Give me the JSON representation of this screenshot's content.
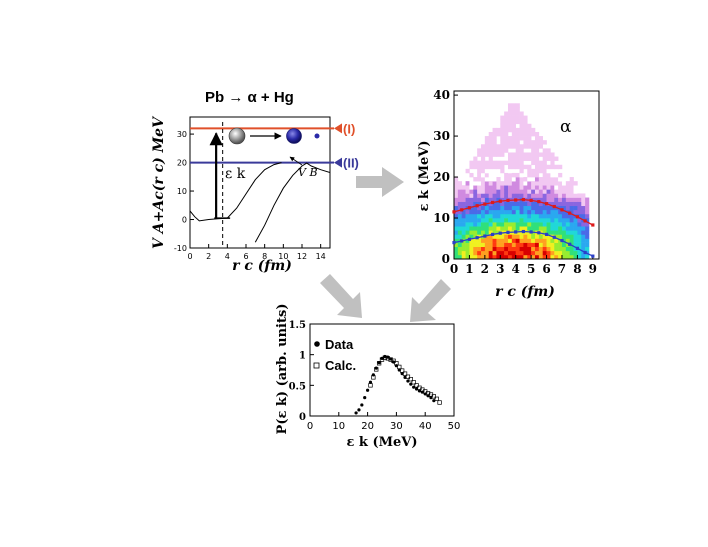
{
  "colors": {
    "level_I": "#e0502a",
    "level_II": "#3a3a9a",
    "arrow_gray": "#c0c0c0",
    "curve_red": "#dd1a1a",
    "curve_blue": "#2a3fc8"
  },
  "potential_panel": {
    "title": "Pb → α + Hg",
    "ylabel": "V A+Ac(r c) MeV",
    "xlabel": "r c (fm)",
    "x_ticks": [
      "0",
      "2",
      "4",
      "6",
      "8",
      "10",
      "12",
      "14"
    ],
    "y_ticks": [
      "-10",
      "0",
      "10",
      "20",
      "30"
    ],
    "level_I_label": "(I)",
    "level_II_label": "(II)",
    "eps_label": "ε k",
    "vb_label": "V B",
    "level_I_value": 32,
    "level_II_value": 20,
    "dashed_x": 3.5,
    "barrier_curve": [
      [
        7.0,
        -8
      ],
      [
        8,
        -2
      ],
      [
        9,
        5
      ],
      [
        10,
        11
      ],
      [
        11,
        15.5
      ],
      [
        12,
        18.8
      ],
      [
        12.5,
        19.8
      ],
      [
        13,
        18.8
      ],
      [
        14,
        17.5
      ],
      [
        15,
        16.5
      ]
    ],
    "solid_curve": [
      [
        0,
        3
      ],
      [
        0.5,
        1
      ],
      [
        1,
        -0.5
      ],
      [
        2,
        0
      ],
      [
        3,
        0.3
      ],
      [
        4.0,
        0.5
      ],
      [
        5,
        4
      ],
      [
        6,
        9
      ],
      [
        7,
        14
      ],
      [
        8,
        17.5
      ],
      [
        9,
        19.3
      ],
      [
        9.8,
        20
      ]
    ]
  },
  "heatmap_panel": {
    "ylabel": "ε k (MeV)",
    "xlabel": "r c (fm)",
    "particle": "α",
    "x_ticks": [
      "0",
      "1",
      "2",
      "3",
      "4",
      "5",
      "6",
      "7",
      "8",
      "9"
    ],
    "y_ticks": [
      "0",
      "10",
      "20",
      "30",
      "40"
    ],
    "xlim": [
      0,
      9.4
    ],
    "ylim": [
      0,
      41
    ],
    "red_curve": [
      [
        0,
        11.5
      ],
      [
        0.5,
        12
      ],
      [
        1,
        12.5
      ],
      [
        1.5,
        13
      ],
      [
        2,
        13.4
      ],
      [
        2.5,
        13.8
      ],
      [
        3,
        14.1
      ],
      [
        3.5,
        14.3
      ],
      [
        4,
        14.4
      ],
      [
        4.5,
        14.5
      ],
      [
        5,
        14.3
      ],
      [
        5.5,
        14
      ],
      [
        6,
        13.5
      ],
      [
        6.5,
        12.8
      ],
      [
        7,
        12
      ],
      [
        7.5,
        11.2
      ],
      [
        8,
        10.3
      ],
      [
        8.5,
        9.3
      ],
      [
        9,
        8.3
      ]
    ],
    "blue_curve": [
      [
        0,
        4
      ],
      [
        0.5,
        4.4
      ],
      [
        1,
        4.8
      ],
      [
        1.5,
        5.2
      ],
      [
        2,
        5.6
      ],
      [
        2.5,
        6
      ],
      [
        3,
        6.3
      ],
      [
        3.5,
        6.5
      ],
      [
        4,
        6.6
      ],
      [
        4.5,
        6.7
      ],
      [
        5,
        6.6
      ],
      [
        5.5,
        6.4
      ],
      [
        6,
        6
      ],
      [
        6.5,
        5.3
      ],
      [
        7,
        4.5
      ],
      [
        7.5,
        3.6
      ],
      [
        8,
        2.6
      ],
      [
        8.5,
        1.6
      ],
      [
        9,
        0.7
      ]
    ]
  },
  "spectrum_panel": {
    "ylabel": "P(ε k) (arb. units)",
    "xlabel": "ε k (MeV)",
    "x_ticks": [
      "0",
      "10",
      "20",
      "30",
      "40",
      "50"
    ],
    "y_ticks": [
      "0",
      "0.5",
      "1",
      "1.5"
    ],
    "xlim": [
      0,
      50
    ],
    "ylim": [
      0,
      1.5
    ],
    "legend": [
      "Data",
      "Calc."
    ],
    "data_points": [
      [
        16,
        0.05
      ],
      [
        17,
        0.1
      ],
      [
        18,
        0.18
      ],
      [
        19,
        0.3
      ],
      [
        20,
        0.42
      ],
      [
        21,
        0.55
      ],
      [
        22,
        0.67
      ],
      [
        23,
        0.78
      ],
      [
        24,
        0.87
      ],
      [
        25,
        0.94
      ],
      [
        26,
        0.97
      ],
      [
        27,
        0.96
      ],
      [
        28,
        0.93
      ],
      [
        29,
        0.88
      ],
      [
        30,
        0.82
      ],
      [
        31,
        0.75
      ],
      [
        32,
        0.69
      ],
      [
        33,
        0.63
      ],
      [
        34,
        0.57
      ],
      [
        35,
        0.52
      ],
      [
        36,
        0.47
      ],
      [
        37,
        0.44
      ],
      [
        38,
        0.41
      ],
      [
        39,
        0.39
      ],
      [
        40,
        0.36
      ],
      [
        41,
        0.33
      ],
      [
        42,
        0.3
      ],
      [
        43,
        0.25
      ]
    ],
    "calc_points": [
      [
        21,
        0.5
      ],
      [
        22,
        0.63
      ],
      [
        23,
        0.76
      ],
      [
        24,
        0.86
      ],
      [
        25,
        0.92
      ],
      [
        26,
        0.95
      ],
      [
        27,
        0.94
      ],
      [
        28,
        0.92
      ],
      [
        29,
        0.9
      ],
      [
        30,
        0.86
      ],
      [
        31,
        0.8
      ],
      [
        32,
        0.74
      ],
      [
        33,
        0.69
      ],
      [
        34,
        0.64
      ],
      [
        35,
        0.6
      ],
      [
        36,
        0.55
      ],
      [
        37,
        0.5
      ],
      [
        38,
        0.46
      ],
      [
        39,
        0.43
      ],
      [
        40,
        0.4
      ],
      [
        41,
        0.37
      ],
      [
        42,
        0.35
      ],
      [
        43,
        0.32
      ],
      [
        44,
        0.28
      ],
      [
        45,
        0.22
      ]
    ]
  }
}
